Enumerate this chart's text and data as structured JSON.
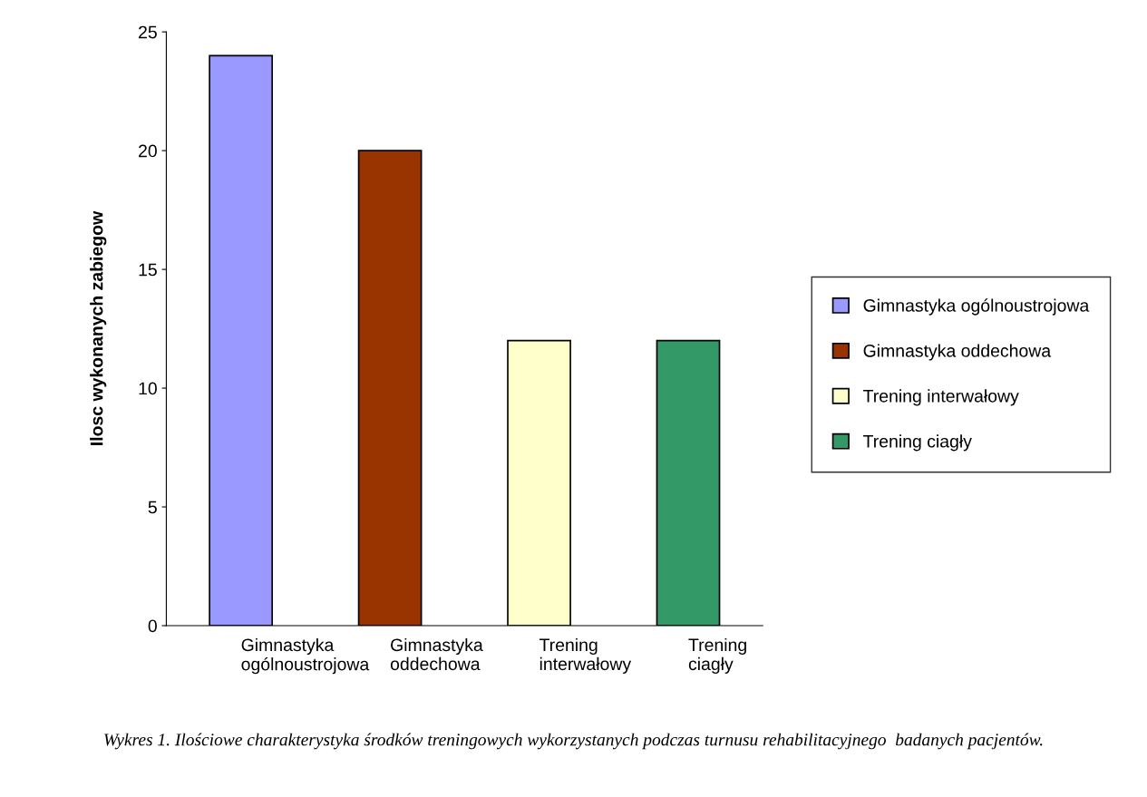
{
  "chart_data": {
    "type": "bar",
    "ylabel": "Ilosc wykonanych zabiegow",
    "categories": [
      "Gimnastyka ogólnoustrojowa",
      "Gimnastyka oddechowa",
      "Trening interwałowy",
      "Trening ciagły"
    ],
    "series": [
      {
        "name": "Gimnastyka ogólnoustrojowa",
        "color": "#9999ff",
        "values": [
          24,
          null,
          null,
          null
        ]
      },
      {
        "name": "Gimnastyka oddechowa",
        "color": "#993300",
        "values": [
          null,
          20,
          null,
          null
        ]
      },
      {
        "name": "Trening interwałowy",
        "color": "#ffffcc",
        "values": [
          null,
          null,
          12,
          null
        ]
      },
      {
        "name": "Trening ciagły",
        "color": "#339966",
        "values": [
          null,
          null,
          null,
          12
        ]
      }
    ],
    "ylim": [
      0,
      25
    ],
    "yticks": [
      0,
      5,
      10,
      15,
      20,
      25
    ],
    "grid": false,
    "legend": "right",
    "annotations": [
      "Wykres 1. Ilościowe charakterystyka środków treningowych wykorzystanych podczas turnusu rehabilitacyjnego  badanych pacjentów."
    ]
  }
}
